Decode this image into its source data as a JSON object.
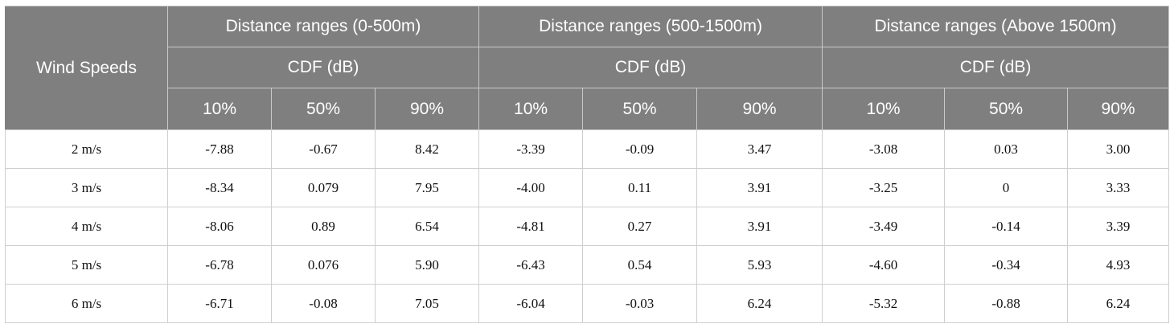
{
  "header": {
    "row_header": "Wind Speeds",
    "groups": [
      "Distance ranges (0-500m)",
      "Distance ranges (500-1500m)",
      "Distance ranges (Above 1500m)"
    ],
    "metric": "CDF (dB)",
    "percentiles": [
      "10%",
      "50%",
      "90%"
    ]
  },
  "rows": [
    {
      "speed": "2 m/s",
      "values": [
        "-7.88",
        "-0.67",
        "8.42",
        "-3.39",
        "-0.09",
        "3.47",
        "-3.08",
        "0.03",
        "3.00"
      ]
    },
    {
      "speed": "3 m/s",
      "values": [
        "-8.34",
        "0.079",
        "7.95",
        "-4.00",
        "0.11",
        "3.91",
        "-3.25",
        "0",
        "3.33"
      ]
    },
    {
      "speed": "4 m/s",
      "values": [
        "-8.06",
        "0.89",
        "6.54",
        "-4.81",
        "0.27",
        "3.91",
        "-3.49",
        "-0.14",
        "3.39"
      ]
    },
    {
      "speed": "5 m/s",
      "values": [
        "-6.78",
        "0.076",
        "5.90",
        "-6.43",
        "0.54",
        "5.93",
        "-4.60",
        "-0.34",
        "4.93"
      ]
    },
    {
      "speed": "6 m/s",
      "values": [
        "-6.71",
        "-0.08",
        "7.05",
        "-6.04",
        "-0.03",
        "6.24",
        "-5.32",
        "-0.88",
        "6.24"
      ]
    }
  ]
}
